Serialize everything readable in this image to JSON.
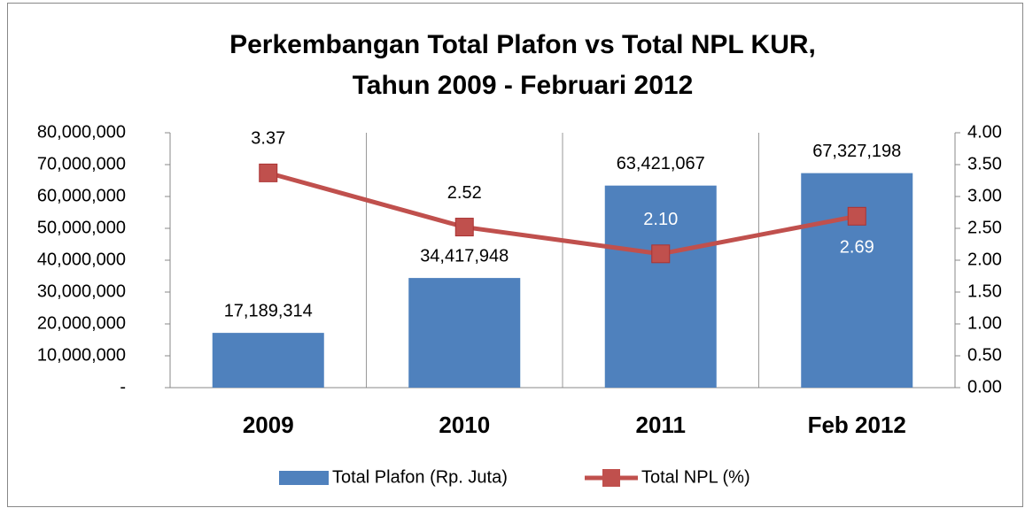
{
  "chart_data": {
    "type": "bar_line",
    "title": [
      "Perkembangan Total Plafon vs Total NPL KUR,",
      "Tahun 2009 - Februari 2012"
    ],
    "categories": [
      "2009",
      "2010",
      "2011",
      "Feb 2012"
    ],
    "series": [
      {
        "name": "Total Plafon (Rp. Juta)",
        "type": "bar",
        "color": "#4f81bd",
        "values": [
          17189314,
          34417948,
          63421067,
          67327198
        ],
        "value_labels": [
          "17,189,314",
          "34,417,948",
          "63,421,067",
          "67,327,198"
        ]
      },
      {
        "name": "Total NPL (%)",
        "type": "line",
        "axis": "y2",
        "color": "#c0504d",
        "values": [
          3.37,
          2.52,
          2.1,
          2.69
        ],
        "value_labels": [
          "3.37",
          "2.52",
          "2.10",
          "2.69"
        ]
      }
    ],
    "ylim": [
      0,
      80000000
    ],
    "yticks": [
      {
        "value": 0,
        "label": "-"
      },
      {
        "value": 10000000,
        "label": "10,000,000"
      },
      {
        "value": 20000000,
        "label": "20,000,000"
      },
      {
        "value": 30000000,
        "label": "30,000,000"
      },
      {
        "value": 40000000,
        "label": "40,000,000"
      },
      {
        "value": 50000000,
        "label": "50,000,000"
      },
      {
        "value": 60000000,
        "label": "60,000,000"
      },
      {
        "value": 70000000,
        "label": "70,000,000"
      },
      {
        "value": 80000000,
        "label": "80,000,000"
      }
    ],
    "y2lim": [
      0,
      4
    ],
    "y2ticks": [
      {
        "value": 0,
        "label": "0.00"
      },
      {
        "value": 0.5,
        "label": "0.50"
      },
      {
        "value": 1,
        "label": "1.00"
      },
      {
        "value": 1.5,
        "label": "1.50"
      },
      {
        "value": 2,
        "label": "2.00"
      },
      {
        "value": 2.5,
        "label": "2.50"
      },
      {
        "value": 3,
        "label": "3.00"
      },
      {
        "value": 3.5,
        "label": "3.50"
      },
      {
        "value": 4,
        "label": "4.00"
      }
    ],
    "legend": "bottom"
  }
}
